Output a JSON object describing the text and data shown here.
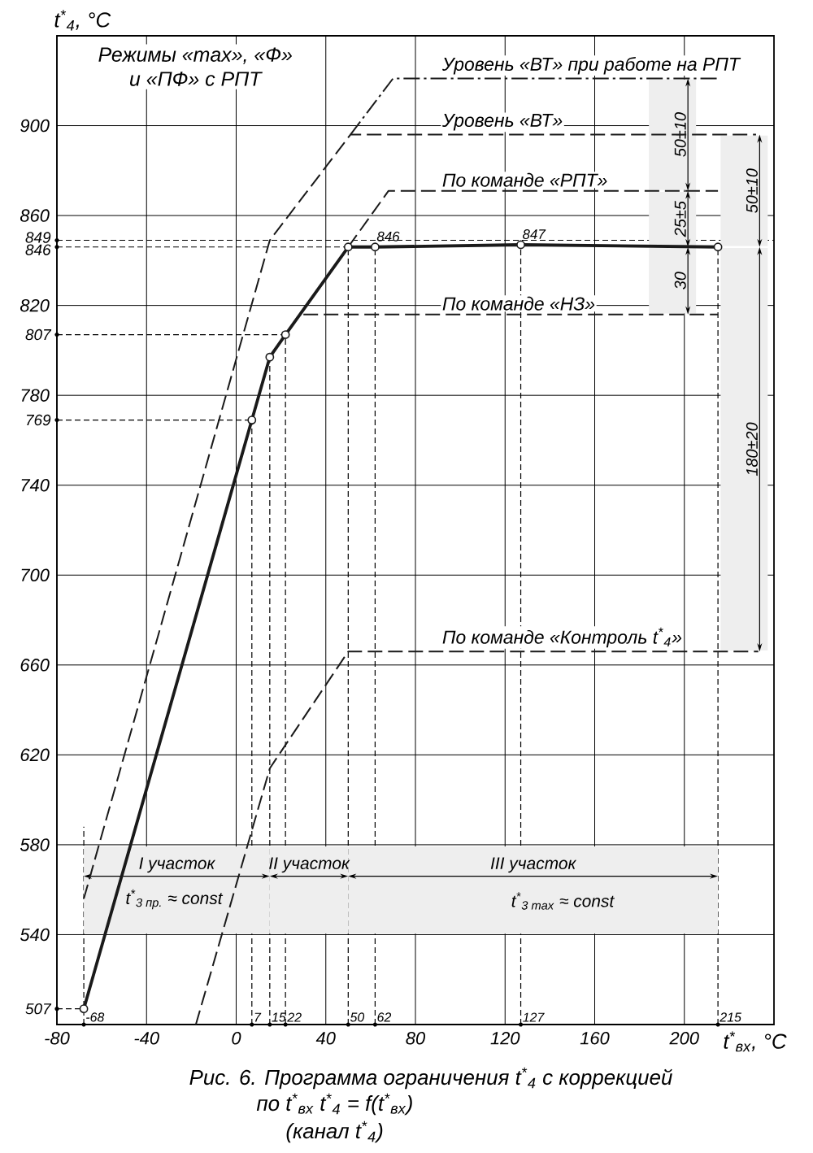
{
  "chart_data": {
    "type": "line",
    "title": "Режимы «max», «Ф» и «ПФ» с РПТ",
    "subtitle": "Рис. 6. Программа ограничения t$^{*}$$_{4}$ с коррекцией",
    "xlabel": "t$^{*}$$_{вх}$, °C",
    "ylabel": "t$^{*}$$_{4}$, °C",
    "annotations": [
      "по t$^{*}$$_{вх}$      t$^{*}$$_{4}$ = f(t$^{*}$$_{вх}$)",
      "(канал t$^{*}$$_{4}$)",
      "t$^{*}$$_{3 пр.}$ ≈ const",
      "t$^{*}$$_{3 max}$ ≈ const"
    ],
    "xlim": [
      -80,
      240
    ],
    "ylim": [
      500,
      940
    ],
    "xticks": [
      -80,
      -40,
      0,
      40,
      80,
      120,
      160,
      200
    ],
    "yticks": [
      540,
      580,
      620,
      660,
      700,
      740,
      780,
      820,
      860,
      900
    ],
    "grid": true,
    "series": [
      {
        "color": "#1a1a1a",
        "x": [
          -68,
          7,
          15,
          22,
          50,
          62,
          127,
          215
        ],
        "values": [
          507,
          769,
          797,
          807,
          846,
          846,
          847,
          846
        ],
        "marker": "circle",
        "line_style": "solid",
        "value_labels": [
          null,
          null,
          null,
          null,
          null,
          "846",
          "847",
          null
        ]
      },
      {
        "name": "Уровень «ВТ» при работе на РПТ",
        "color": "#1a1a1a",
        "x": [
          51,
          70,
          215
        ],
        "values": [
          896,
          921,
          921
        ],
        "line_style": "dashdot"
      },
      {
        "name": "Уровень «ВТ»",
        "color": "#1a1a1a",
        "x": [
          -68,
          15,
          51,
          232
        ],
        "values": [
          556,
          849,
          896,
          896
        ],
        "line_style": "dashed"
      },
      {
        "name": "По команде «РПТ»",
        "color": "#1a1a1a",
        "x": [
          50,
          68,
          215
        ],
        "values": [
          846,
          871,
          871
        ],
        "line_style": "dashed"
      },
      {
        "name": "По команде «НЗ»",
        "color": "#1a1a1a",
        "x": [
          30,
          215
        ],
        "values": [
          816,
          816
        ],
        "line_style": "dashed"
      },
      {
        "name": "По команде «Контроль t$^{*}$$_{4}$»",
        "color": "#1a1a1a",
        "x": [
          -18,
          15,
          50,
          233
        ],
        "values": [
          500,
          614,
          666,
          666
        ],
        "line_style": "dashed"
      }
    ],
    "ref_lines": [
      {
        "axis": "y",
        "value": 507,
        "label": "507",
        "line_style": "dashed"
      },
      {
        "axis": "y",
        "value": 769,
        "label": "769",
        "line_style": "dashed"
      },
      {
        "axis": "y",
        "value": 807,
        "label": "807",
        "line_style": "dashed"
      },
      {
        "axis": "y",
        "value": 846,
        "label": "846",
        "line_style": "dashed"
      },
      {
        "axis": "y",
        "value": 849,
        "label": "849",
        "line_style": "dashed"
      },
      {
        "axis": "x",
        "value": -68,
        "label": "-68",
        "line_style": "dashed"
      },
      {
        "axis": "x",
        "value": 7,
        "label": "7",
        "line_style": "dashed"
      },
      {
        "axis": "x",
        "value": 15,
        "label": "15",
        "line_style": "dashed"
      },
      {
        "axis": "x",
        "value": 22,
        "label": "22",
        "line_style": "dashed"
      },
      {
        "axis": "x",
        "value": 50,
        "label": "50",
        "line_style": "dashed"
      },
      {
        "axis": "x",
        "value": 62,
        "label": "62",
        "line_style": "dashed"
      },
      {
        "axis": "x",
        "value": 127,
        "label": "127",
        "line_style": "dashed"
      },
      {
        "axis": "x",
        "value": 215,
        "label": "215",
        "line_style": "dashed"
      }
    ],
    "bands": [
      {
        "axis": "x",
        "from": -68,
        "to": 15,
        "label": "I участок"
      },
      {
        "axis": "x",
        "from": 15,
        "to": 50,
        "label": "II участок"
      },
      {
        "axis": "x",
        "from": 50,
        "to": 215,
        "label": "III участок"
      },
      {
        "axis": "y",
        "from": 871,
        "to": 921,
        "label": "50±10"
      },
      {
        "axis": "y",
        "from": 846,
        "to": 871,
        "label": "25±5"
      },
      {
        "axis": "y",
        "from": 816,
        "to": 846,
        "label": "30"
      },
      {
        "axis": "y",
        "from": 846,
        "to": 896,
        "label": "50±10"
      },
      {
        "axis": "y",
        "from": 666,
        "to": 846,
        "label": "180±20"
      }
    ]
  }
}
